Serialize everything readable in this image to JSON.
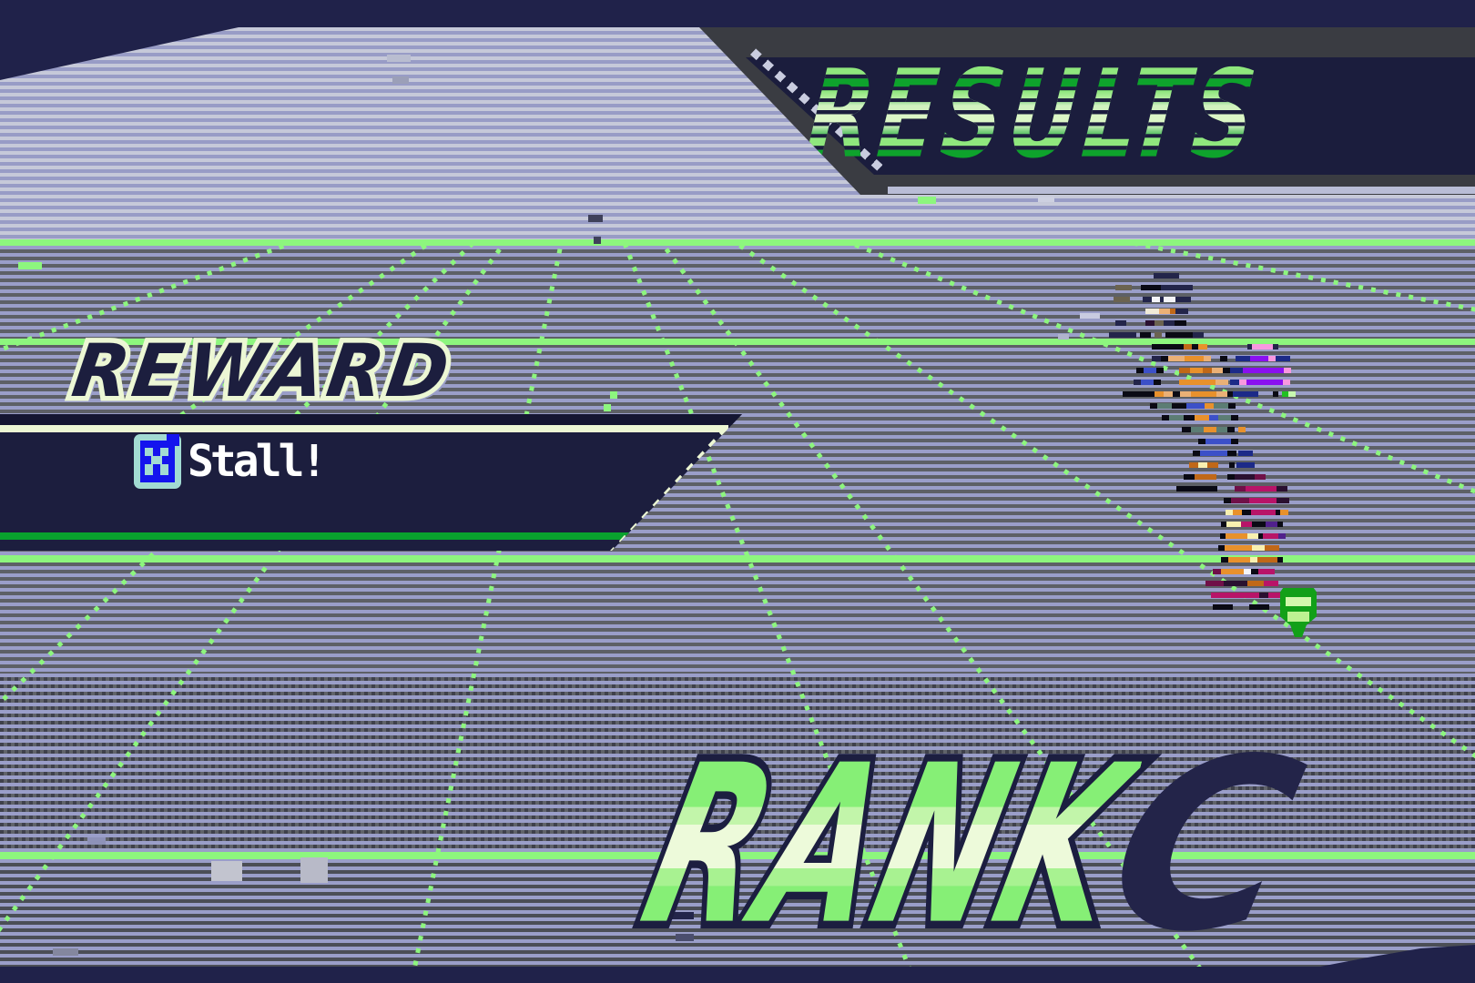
{
  "game": {
    "results_title": "RESULTS",
    "reward": {
      "label": "REWARD",
      "item_name": "Stall!"
    },
    "rank": {
      "label": "RANK",
      "value": "C"
    }
  },
  "colors": {
    "grid_green": "#8df67e",
    "panel_navy": "#1c1e3e",
    "panel_border_green": "#09a22e",
    "results_green_dark": "#0ea32c",
    "results_green_light": "#8fe77d",
    "rank_green": "#86ef76",
    "rank_cream": "#edfada",
    "reward_cream": "#ecf7d4",
    "rank_letter_navy": "#232449",
    "chip_blue": "#1414ee",
    "chip_cyan": "#a2dbd3",
    "shield_green": "#12a018"
  }
}
